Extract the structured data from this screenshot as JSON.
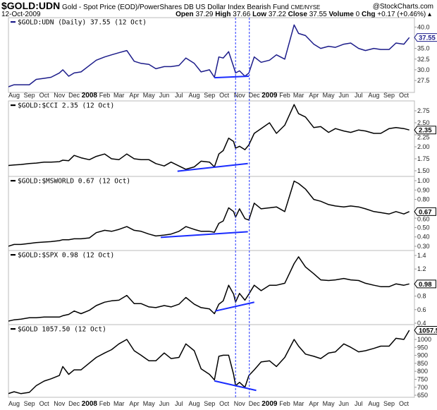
{
  "header": {
    "symbol": "$GOLD:UDN",
    "description": "Gold - Spot Price (EOD)/PowerShares DB US Dollar Index Bearish Fund",
    "exchange": "CME/NYSE",
    "date": "12-Oct-2009",
    "watermark": "@StockCharts.com",
    "open_label": "Open",
    "open": "37.29",
    "high_label": "High",
    "high": "37.66",
    "low_label": "Low",
    "low": "37.22",
    "close_label": "Close",
    "close": "37.55",
    "volume_label": "Volume",
    "volume": "0",
    "chg_label": "Chg",
    "chg": "+0.17 (+0.46%)",
    "chg_icon": "up-triangle-icon"
  },
  "chart_data": {
    "type": "line",
    "x": [
      "2007-07-20",
      "2007-08-01",
      "2007-08-15",
      "2007-09-01",
      "2007-09-15",
      "2007-10-01",
      "2007-10-15",
      "2007-11-01",
      "2007-11-08",
      "2007-11-20",
      "2007-12-01",
      "2007-12-15",
      "2008-01-01",
      "2008-01-15",
      "2008-02-01",
      "2008-02-15",
      "2008-03-01",
      "2008-03-17",
      "2008-04-01",
      "2008-04-15",
      "2008-05-01",
      "2008-05-15",
      "2008-06-01",
      "2008-06-15",
      "2008-07-01",
      "2008-07-15",
      "2008-08-01",
      "2008-08-15",
      "2008-09-01",
      "2008-09-11",
      "2008-09-20",
      "2008-09-29",
      "2008-10-10",
      "2008-10-20",
      "2008-10-24",
      "2008-11-01",
      "2008-11-12",
      "2008-11-20",
      "2008-12-01",
      "2008-12-15",
      "2009-01-01",
      "2009-01-15",
      "2009-02-01",
      "2009-02-20",
      "2009-03-01",
      "2009-03-15",
      "2009-04-01",
      "2009-04-15",
      "2009-05-01",
      "2009-05-15",
      "2009-06-01",
      "2009-06-15",
      "2009-07-01",
      "2009-07-15",
      "2009-08-01",
      "2009-08-15",
      "2009-09-01",
      "2009-09-15",
      "2009-10-01",
      "2009-10-12"
    ],
    "x_tick_labels": [
      {
        "label": "Aug",
        "date": "2007-08-01"
      },
      {
        "label": "Sep",
        "date": "2007-09-01"
      },
      {
        "label": "Oct",
        "date": "2007-10-01"
      },
      {
        "label": "Nov",
        "date": "2007-11-01"
      },
      {
        "label": "Dec",
        "date": "2007-12-01"
      },
      {
        "label": "2008",
        "date": "2008-01-01",
        "bold": true
      },
      {
        "label": "Feb",
        "date": "2008-02-01"
      },
      {
        "label": "Mar",
        "date": "2008-03-01"
      },
      {
        "label": "Apr",
        "date": "2008-04-01"
      },
      {
        "label": "May",
        "date": "2008-05-01"
      },
      {
        "label": "Jun",
        "date": "2008-06-01"
      },
      {
        "label": "Jul",
        "date": "2008-07-01"
      },
      {
        "label": "Aug",
        "date": "2008-08-01"
      },
      {
        "label": "Sep",
        "date": "2008-09-01"
      },
      {
        "label": "Oct",
        "date": "2008-10-01"
      },
      {
        "label": "Nov",
        "date": "2008-11-01"
      },
      {
        "label": "Dec",
        "date": "2008-12-01"
      },
      {
        "label": "2009",
        "date": "2009-01-01",
        "bold": true
      },
      {
        "label": "Feb",
        "date": "2009-02-01"
      },
      {
        "label": "Mar",
        "date": "2009-03-01"
      },
      {
        "label": "Apr",
        "date": "2009-04-01"
      },
      {
        "label": "May",
        "date": "2009-05-01"
      },
      {
        "label": "Jun",
        "date": "2009-06-01"
      },
      {
        "label": "Jul",
        "date": "2009-07-01"
      },
      {
        "label": "Aug",
        "date": "2009-08-01"
      },
      {
        "label": "Sep",
        "date": "2009-09-01"
      },
      {
        "label": "Oct",
        "date": "2009-10-01"
      }
    ],
    "event_lines": [
      "2008-10-24",
      "2008-11-21"
    ],
    "event_color": "#2233ff",
    "trendline_color": "#1a2cff",
    "panels": [
      {
        "name": "udn",
        "legend": "$GOLD:UDN (Daily) 37.55 (12 Oct)",
        "color": "#1c1c8a",
        "last": "37.55",
        "ylim": [
          24.7,
          42.2
        ],
        "yticks": [
          "40.0",
          "35.0",
          "32.5",
          "30.0",
          "27.5"
        ],
        "values": [
          26,
          26.5,
          26.5,
          26.5,
          27.75,
          28,
          28.25,
          29.25,
          30,
          28.5,
          29.25,
          29.5,
          31,
          32.25,
          33,
          33.5,
          34,
          34.5,
          32,
          31.5,
          31.25,
          30.25,
          30.75,
          30.75,
          31,
          32.75,
          31.5,
          29.5,
          30,
          28.25,
          33,
          32.75,
          34.25,
          30.75,
          29.25,
          29.75,
          28.5,
          29.25,
          33,
          31.75,
          32.25,
          33.5,
          32.5,
          40.5,
          38.5,
          38,
          36,
          35,
          35.5,
          35.25,
          36,
          36.25,
          35,
          34.5,
          35,
          34.75,
          34.75,
          36.25,
          36,
          37.55
        ],
        "trendline": [
          [
            "2008-09-11",
            28.15
          ],
          [
            "2008-11-20",
            28.5
          ]
        ]
      },
      {
        "name": "cci",
        "legend": "$GOLD:$CCI 2.35 (12 Oct)",
        "color": "#000000",
        "last": "2.35",
        "ylim": [
          1.382,
          2.956
        ],
        "yticks": [
          "2.75",
          "2.50",
          "2.25",
          "2.00",
          "1.75",
          "1.50"
        ],
        "values": [
          1.61,
          1.62,
          1.63,
          1.65,
          1.66,
          1.68,
          1.68,
          1.69,
          1.72,
          1.71,
          1.82,
          1.77,
          1.73,
          1.8,
          1.85,
          1.75,
          1.73,
          1.85,
          1.75,
          1.73,
          1.73,
          1.65,
          1.6,
          1.68,
          1.6,
          1.53,
          1.58,
          1.7,
          1.68,
          1.58,
          1.85,
          1.92,
          2.18,
          2.11,
          1.97,
          2.01,
          1.94,
          2.04,
          2.28,
          2.38,
          2.5,
          2.28,
          2.45,
          2.88,
          2.69,
          2.62,
          2.4,
          2.42,
          2.3,
          2.38,
          2.33,
          2.3,
          2.35,
          2.33,
          2.28,
          2.28,
          2.38,
          2.4,
          2.38,
          2.35
        ],
        "trendline": [
          [
            "2008-06-28",
            1.49
          ],
          [
            "2008-11-18",
            1.65
          ]
        ]
      },
      {
        "name": "msworld",
        "legend": "$GOLD:$MSWORLD 0.67 (12 Oct)",
        "color": "#000000",
        "last": "0.67",
        "ylim": [
          0.255,
          1.045
        ],
        "yticks": [
          "1.00",
          "0.90",
          "0.80",
          "0.60",
          "0.50",
          "0.40",
          "0.30"
        ],
        "values": [
          0.3,
          0.32,
          0.32,
          0.33,
          0.34,
          0.345,
          0.35,
          0.36,
          0.37,
          0.37,
          0.38,
          0.38,
          0.39,
          0.445,
          0.47,
          0.46,
          0.48,
          0.51,
          0.47,
          0.46,
          0.43,
          0.41,
          0.42,
          0.43,
          0.46,
          0.51,
          0.48,
          0.46,
          0.46,
          0.45,
          0.545,
          0.57,
          0.71,
          0.67,
          0.61,
          0.7,
          0.595,
          0.58,
          0.76,
          0.7,
          0.71,
          0.72,
          0.67,
          0.995,
          0.97,
          0.91,
          0.8,
          0.78,
          0.745,
          0.73,
          0.72,
          0.73,
          0.72,
          0.7,
          0.67,
          0.66,
          0.645,
          0.67,
          0.645,
          0.67
        ],
        "trendline": [
          [
            "2008-05-25",
            0.395
          ],
          [
            "2008-11-18",
            0.455
          ]
        ]
      },
      {
        "name": "spx",
        "legend": "$GOLD:$SPX 0.98 (12 Oct)",
        "color": "#000000",
        "last": "0.98",
        "ylim": [
          0.379,
          1.473
        ],
        "yticks": [
          "1.4",
          "1.2",
          "0.8",
          "0.6",
          "0.4"
        ],
        "values": [
          0.43,
          0.45,
          0.46,
          0.48,
          0.48,
          0.49,
          0.49,
          0.49,
          0.51,
          0.53,
          0.58,
          0.54,
          0.59,
          0.66,
          0.71,
          0.73,
          0.74,
          0.81,
          0.69,
          0.69,
          0.64,
          0.63,
          0.66,
          0.64,
          0.68,
          0.78,
          0.68,
          0.63,
          0.61,
          0.54,
          0.68,
          0.73,
          0.96,
          0.83,
          0.71,
          0.84,
          0.74,
          0.83,
          0.96,
          0.88,
          0.96,
          0.96,
          0.99,
          1.28,
          1.38,
          1.23,
          1.13,
          1.04,
          1.03,
          1.04,
          1.06,
          1.04,
          1.03,
          0.99,
          0.96,
          0.94,
          0.94,
          0.98,
          0.96,
          0.98
        ],
        "trendline": [
          [
            "2008-09-13",
            0.58
          ],
          [
            "2008-12-01",
            0.71
          ]
        ]
      },
      {
        "name": "gold",
        "legend": "$GOLD 1057.50 (12 Oct)",
        "color": "#000000",
        "last": "1057.50",
        "ylim": [
          637,
          1093
        ],
        "yticks": [
          "1000",
          "950",
          "900",
          "850",
          "800",
          "750",
          "700",
          "650"
        ],
        "values": [
          660,
          672,
          660,
          668,
          710,
          739,
          753,
          774,
          830,
          781,
          809,
          809,
          852,
          887,
          915,
          936,
          972,
          1000,
          929,
          901,
          866,
          866,
          915,
          880,
          887,
          972,
          929,
          816,
          781,
          746,
          894,
          901,
          901,
          781,
          710,
          731,
          700,
          774,
          809,
          859,
          866,
          830,
          887,
          1000,
          958,
          908,
          894,
          880,
          915,
          922,
          972,
          951,
          922,
          929,
          944,
          958,
          958,
          1007,
          1000,
          1057.5
        ],
        "trendline": [
          [
            "2008-09-11",
            740
          ],
          [
            "2008-12-05",
            680
          ]
        ]
      }
    ]
  }
}
